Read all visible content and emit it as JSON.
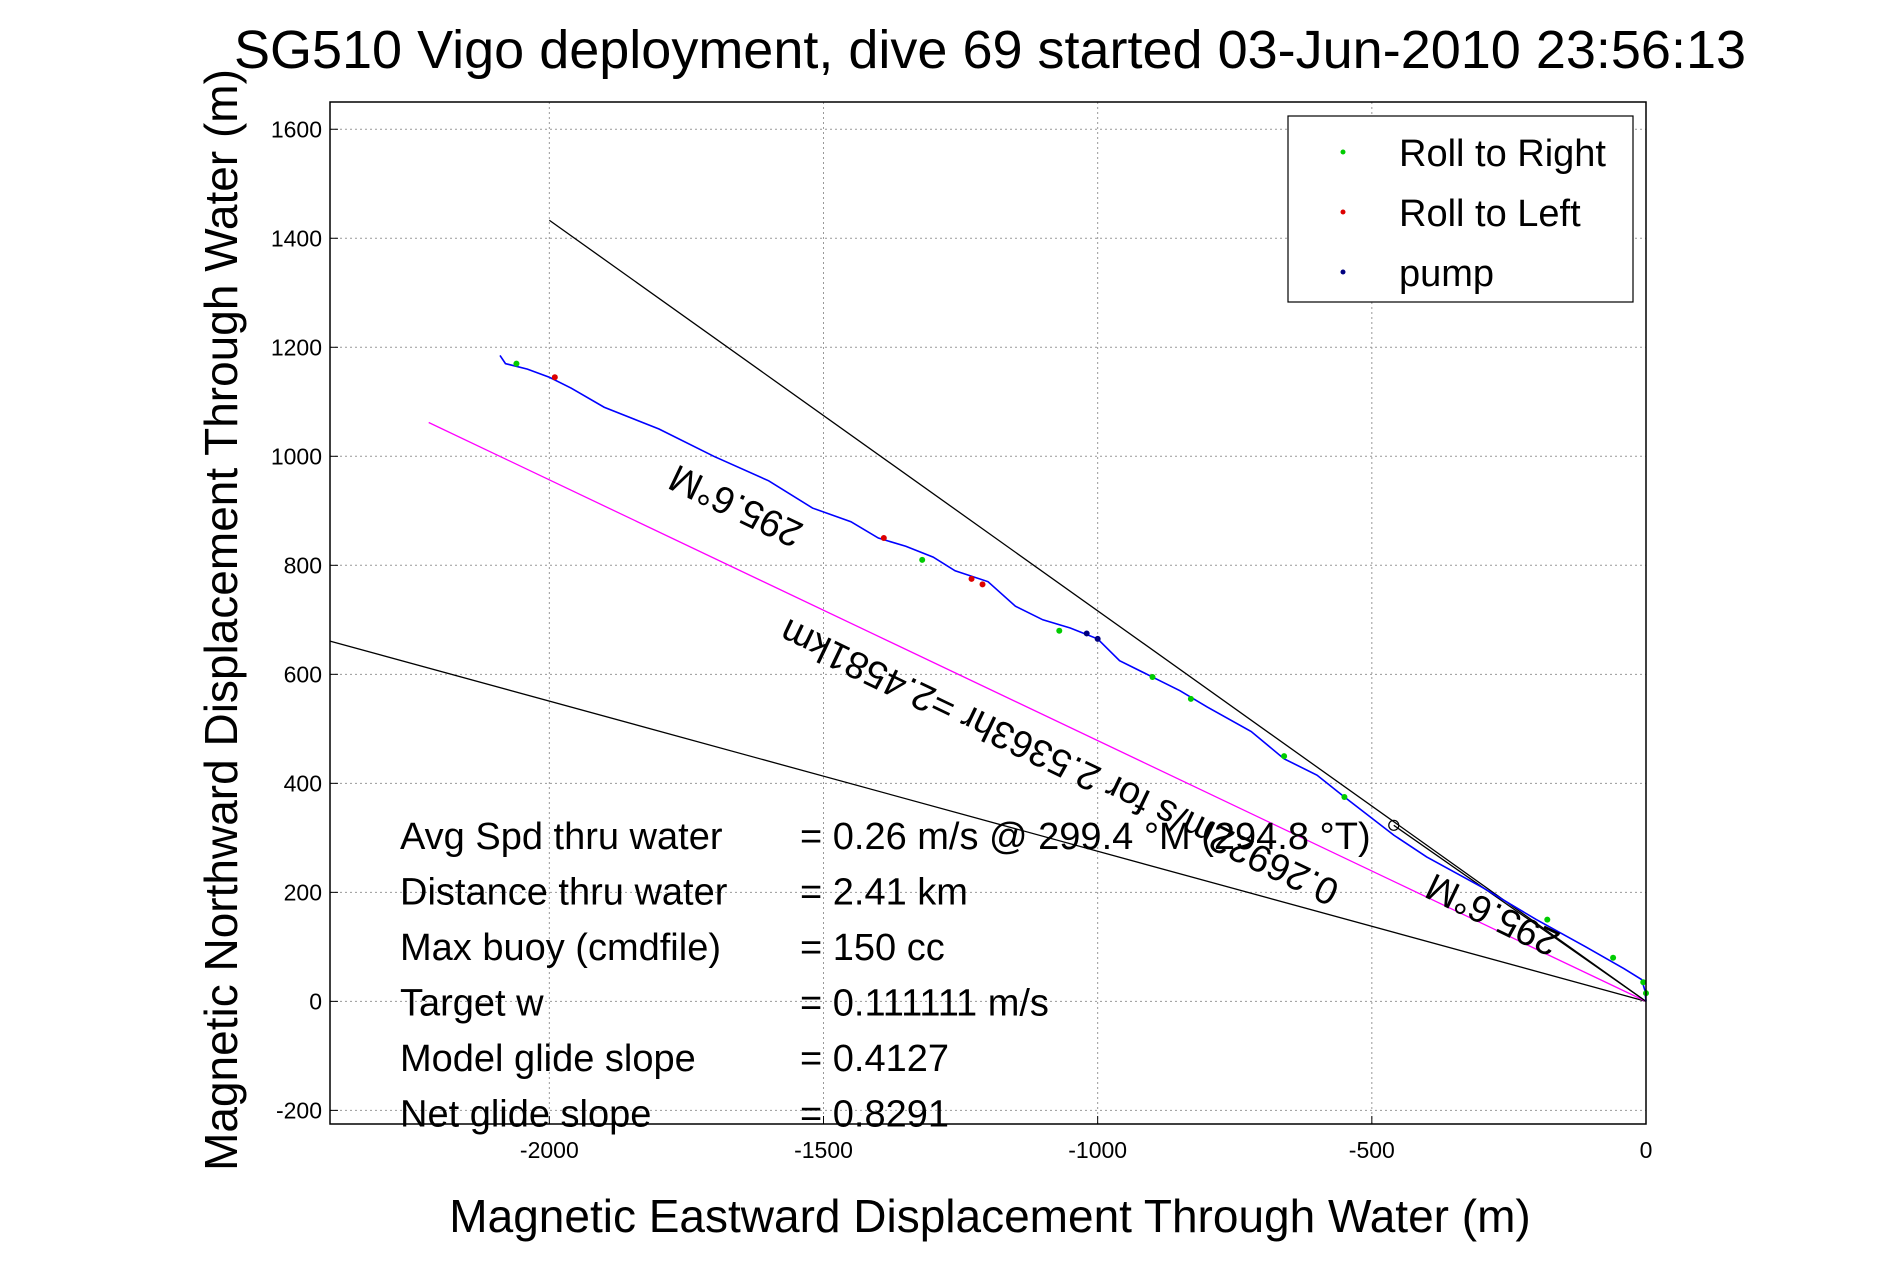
{
  "chart_data": {
    "type": "line",
    "title": "SG510 Vigo deployment, dive 69 started 03-Jun-2010 23:56:13",
    "xlabel": "Magnetic Eastward Displacement Through Water (m)",
    "ylabel": "Magnetic Northward Displacement Through Water (m)",
    "xlim": [
      -2400,
      0
    ],
    "ylim": [
      -225,
      1650
    ],
    "x_ticks": [
      -2000,
      -1500,
      -1000,
      -500,
      0
    ],
    "x_tick_labels": [
      "-2000",
      "-1500",
      "-1000",
      "-500",
      "0"
    ],
    "y_ticks": [
      -200,
      0,
      200,
      400,
      600,
      800,
      1000,
      1200,
      1400,
      1600
    ],
    "y_tick_labels": [
      "-200",
      "0",
      "200",
      "400",
      "600",
      "800",
      "1000",
      "1200",
      "1400",
      "1600"
    ],
    "grid": true,
    "legend_position": "top-right",
    "legend": [
      {
        "label": "Roll to Right",
        "color": "#00cc00"
      },
      {
        "label": "Roll to Left",
        "color": "#dd0000"
      },
      {
        "label": "pump",
        "color": "#000080"
      }
    ],
    "track": {
      "color": "#0000ff",
      "x": [
        0,
        -2,
        -8,
        -40,
        -110,
        -200,
        -300,
        -400,
        -460,
        -550,
        -600,
        -660,
        -720,
        -800,
        -850,
        -900,
        -960,
        -1000,
        -1050,
        -1100,
        -1150,
        -1200,
        -1260,
        -1300,
        -1350,
        -1400,
        -1450,
        -1520,
        -1600,
        -1700,
        -1800,
        -1900,
        -1960,
        -2000,
        -2040,
        -2080,
        -2090
      ],
      "y": [
        0,
        20,
        40,
        60,
        100,
        150,
        210,
        265,
        305,
        375,
        415,
        445,
        495,
        540,
        570,
        595,
        625,
        665,
        685,
        700,
        725,
        770,
        790,
        815,
        835,
        850,
        880,
        905,
        955,
        1000,
        1050,
        1090,
        1125,
        1145,
        1160,
        1170,
        1185
      ]
    },
    "markers": {
      "right": {
        "x": [
          0,
          -5,
          -60,
          -180,
          -550,
          -660,
          -830,
          -900,
          -1070,
          -1320,
          -2060
        ],
        "y": [
          15,
          35,
          80,
          150,
          375,
          450,
          555,
          595,
          680,
          810,
          1170
        ]
      },
      "left": {
        "x": [
          -1210,
          -1230,
          -1390,
          -1990
        ],
        "y": [
          765,
          775,
          850,
          1145
        ]
      },
      "pump": {
        "x": [
          -1000,
          -1020
        ],
        "y": [
          665,
          675
        ]
      }
    },
    "reference_lines": [
      {
        "color": "#000000",
        "x": [
          0,
          -2000
        ],
        "y": [
          0,
          1433
        ]
      },
      {
        "color": "#000000",
        "x": [
          0,
          -2400
        ],
        "y": [
          0,
          661
        ]
      },
      {
        "color": "#ff00ff",
        "x": [
          0,
          -2220
        ],
        "y": [
          0,
          1062
        ]
      },
      {
        "color": "#000000",
        "x": [
          0,
          -460
        ],
        "y": [
          0,
          323
        ]
      }
    ],
    "end_marker": {
      "x": -460,
      "y": 323
    },
    "annotations": [
      {
        "text": "295.6°M",
        "x": -1650,
        "y": 930,
        "rotation_deg": 205.6
      },
      {
        "text": "0.26922m/s for 2.5363hr =2.4581km",
        "x": -1060,
        "y": 460,
        "rotation_deg": 205.6
      },
      {
        "text": "295.6°M",
        "x": -270,
        "y": 180,
        "rotation_deg": 205.6
      }
    ],
    "stats": [
      {
        "label": "Avg Spd thru water",
        "value": "=  0.26 m/s @ 299.4  °M (294.8  °T)"
      },
      {
        "label": "Distance thru water",
        "value": "=  2.41 km"
      },
      {
        "label": "Max buoy (cmdfile)",
        "value": "= 150 cc"
      },
      {
        "label": "Target w",
        "value": "= 0.111111 m/s"
      },
      {
        "label": "Model glide slope",
        "value": "= 0.4127"
      },
      {
        "label": "Net glide slope",
        "value": "= 0.8291"
      }
    ]
  }
}
